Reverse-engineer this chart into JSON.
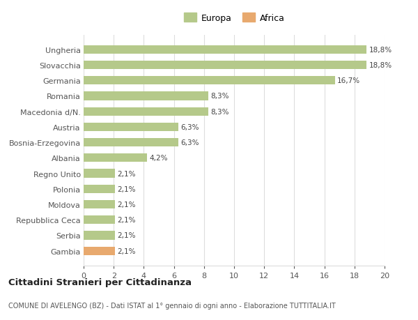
{
  "categories": [
    "Gambia",
    "Serbia",
    "Repubblica Ceca",
    "Moldova",
    "Polonia",
    "Regno Unito",
    "Albania",
    "Bosnia-Erzegovina",
    "Austria",
    "Macedonia d/N.",
    "Romania",
    "Germania",
    "Slovacchia",
    "Ungheria"
  ],
  "values": [
    2.1,
    2.1,
    2.1,
    2.1,
    2.1,
    2.1,
    4.2,
    6.3,
    6.3,
    8.3,
    8.3,
    16.7,
    18.8,
    18.8
  ],
  "labels": [
    "2,1%",
    "2,1%",
    "2,1%",
    "2,1%",
    "2,1%",
    "2,1%",
    "4,2%",
    "6,3%",
    "6,3%",
    "8,3%",
    "8,3%",
    "16,7%",
    "18,8%",
    "18,8%"
  ],
  "colors": [
    "#e8a96e",
    "#b5c98a",
    "#b5c98a",
    "#b5c98a",
    "#b5c98a",
    "#b5c98a",
    "#b5c98a",
    "#b5c98a",
    "#b5c98a",
    "#b5c98a",
    "#b5c98a",
    "#b5c98a",
    "#b5c98a",
    "#b5c98a"
  ],
  "europa_color": "#b5c98a",
  "africa_color": "#e8a96e",
  "xlim": [
    0,
    20
  ],
  "xticks": [
    0,
    2,
    4,
    6,
    8,
    10,
    12,
    14,
    16,
    18,
    20
  ],
  "title": "Cittadini Stranieri per Cittadinanza",
  "subtitle": "COMUNE DI AVELENGO (BZ) - Dati ISTAT al 1° gennaio di ogni anno - Elaborazione TUTTITALIA.IT",
  "background_color": "#ffffff",
  "grid_color": "#dddddd",
  "bar_height": 0.55,
  "legend_europa": "Europa",
  "legend_africa": "Africa"
}
